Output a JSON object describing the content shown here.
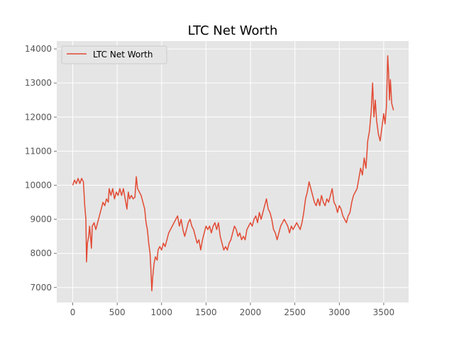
{
  "chart_data": {
    "type": "line",
    "title": "LTC Net Worth",
    "xlabel": "",
    "ylabel": "",
    "xlim": [
      -180,
      3780
    ],
    "ylim": [
      6560,
      14230
    ],
    "x_ticks": [
      0,
      500,
      1000,
      1500,
      2000,
      2500,
      3000,
      3500
    ],
    "y_ticks": [
      7000,
      8000,
      9000,
      10000,
      11000,
      12000,
      13000,
      14000
    ],
    "grid": true,
    "legend": {
      "placement": "upper-left",
      "entries": [
        "LTC Net Worth"
      ]
    },
    "colors": {
      "series": "#E24A33",
      "plot_bg": "#E5E5E5",
      "grid": "#FFFFFF",
      "tick_text": "#555555"
    },
    "series": [
      {
        "name": "LTC Net Worth",
        "points": [
          [
            0,
            10000
          ],
          [
            20,
            10150
          ],
          [
            40,
            10050
          ],
          [
            60,
            10200
          ],
          [
            80,
            10050
          ],
          [
            100,
            10200
          ],
          [
            120,
            10100
          ],
          [
            135,
            9400
          ],
          [
            148,
            9000
          ],
          [
            155,
            7750
          ],
          [
            165,
            8300
          ],
          [
            180,
            8500
          ],
          [
            190,
            8800
          ],
          [
            200,
            8500
          ],
          [
            210,
            8150
          ],
          [
            220,
            8800
          ],
          [
            240,
            8900
          ],
          [
            260,
            8700
          ],
          [
            280,
            8900
          ],
          [
            300,
            9100
          ],
          [
            320,
            9300
          ],
          [
            340,
            9500
          ],
          [
            360,
            9400
          ],
          [
            380,
            9600
          ],
          [
            400,
            9500
          ],
          [
            410,
            9900
          ],
          [
            430,
            9700
          ],
          [
            450,
            9900
          ],
          [
            470,
            9600
          ],
          [
            490,
            9800
          ],
          [
            510,
            9700
          ],
          [
            530,
            9900
          ],
          [
            550,
            9700
          ],
          [
            570,
            9900
          ],
          [
            590,
            9600
          ],
          [
            610,
            9300
          ],
          [
            625,
            9800
          ],
          [
            640,
            9600
          ],
          [
            660,
            9700
          ],
          [
            680,
            9600
          ],
          [
            700,
            9650
          ],
          [
            715,
            10250
          ],
          [
            730,
            9900
          ],
          [
            750,
            9800
          ],
          [
            770,
            9700
          ],
          [
            790,
            9500
          ],
          [
            810,
            9300
          ],
          [
            825,
            8900
          ],
          [
            840,
            8700
          ],
          [
            855,
            8300
          ],
          [
            870,
            8000
          ],
          [
            880,
            7500
          ],
          [
            890,
            6900
          ],
          [
            900,
            7300
          ],
          [
            915,
            7700
          ],
          [
            930,
            7900
          ],
          [
            950,
            7800
          ],
          [
            960,
            8100
          ],
          [
            980,
            8200
          ],
          [
            1000,
            8100
          ],
          [
            1020,
            8300
          ],
          [
            1040,
            8200
          ],
          [
            1060,
            8400
          ],
          [
            1080,
            8600
          ],
          [
            1100,
            8700
          ],
          [
            1120,
            8800
          ],
          [
            1140,
            8900
          ],
          [
            1160,
            9000
          ],
          [
            1180,
            9100
          ],
          [
            1200,
            8800
          ],
          [
            1220,
            9000
          ],
          [
            1240,
            8700
          ],
          [
            1260,
            8500
          ],
          [
            1280,
            8700
          ],
          [
            1300,
            8900
          ],
          [
            1320,
            9000
          ],
          [
            1340,
            8800
          ],
          [
            1360,
            8700
          ],
          [
            1380,
            8500
          ],
          [
            1400,
            8300
          ],
          [
            1420,
            8400
          ],
          [
            1440,
            8100
          ],
          [
            1460,
            8400
          ],
          [
            1480,
            8600
          ],
          [
            1500,
            8800
          ],
          [
            1520,
            8700
          ],
          [
            1540,
            8800
          ],
          [
            1560,
            8600
          ],
          [
            1580,
            8800
          ],
          [
            1600,
            8900
          ],
          [
            1620,
            8700
          ],
          [
            1640,
            8900
          ],
          [
            1660,
            8500
          ],
          [
            1680,
            8300
          ],
          [
            1700,
            8100
          ],
          [
            1720,
            8200
          ],
          [
            1740,
            8100
          ],
          [
            1760,
            8300
          ],
          [
            1780,
            8400
          ],
          [
            1800,
            8600
          ],
          [
            1820,
            8800
          ],
          [
            1840,
            8700
          ],
          [
            1860,
            8500
          ],
          [
            1880,
            8600
          ],
          [
            1900,
            8400
          ],
          [
            1920,
            8500
          ],
          [
            1940,
            8400
          ],
          [
            1960,
            8700
          ],
          [
            1980,
            8800
          ],
          [
            2000,
            8900
          ],
          [
            2020,
            8800
          ],
          [
            2040,
            9000
          ],
          [
            2060,
            9100
          ],
          [
            2080,
            8900
          ],
          [
            2100,
            9200
          ],
          [
            2120,
            9000
          ],
          [
            2140,
            9200
          ],
          [
            2160,
            9400
          ],
          [
            2180,
            9600
          ],
          [
            2200,
            9300
          ],
          [
            2220,
            9200
          ],
          [
            2240,
            9000
          ],
          [
            2260,
            8700
          ],
          [
            2280,
            8600
          ],
          [
            2300,
            8400
          ],
          [
            2320,
            8600
          ],
          [
            2340,
            8800
          ],
          [
            2360,
            8900
          ],
          [
            2380,
            9000
          ],
          [
            2400,
            8900
          ],
          [
            2420,
            8800
          ],
          [
            2440,
            8600
          ],
          [
            2460,
            8800
          ],
          [
            2480,
            8700
          ],
          [
            2500,
            8800
          ],
          [
            2520,
            8900
          ],
          [
            2540,
            8800
          ],
          [
            2560,
            8700
          ],
          [
            2580,
            8900
          ],
          [
            2600,
            9200
          ],
          [
            2620,
            9600
          ],
          [
            2640,
            9800
          ],
          [
            2660,
            10100
          ],
          [
            2680,
            9900
          ],
          [
            2700,
            9700
          ],
          [
            2720,
            9500
          ],
          [
            2740,
            9400
          ],
          [
            2760,
            9600
          ],
          [
            2780,
            9400
          ],
          [
            2800,
            9700
          ],
          [
            2820,
            9500
          ],
          [
            2840,
            9400
          ],
          [
            2860,
            9600
          ],
          [
            2880,
            9500
          ],
          [
            2900,
            9700
          ],
          [
            2920,
            9900
          ],
          [
            2940,
            9500
          ],
          [
            2960,
            9400
          ],
          [
            2980,
            9200
          ],
          [
            3000,
            9400
          ],
          [
            3020,
            9300
          ],
          [
            3040,
            9100
          ],
          [
            3060,
            9000
          ],
          [
            3080,
            8900
          ],
          [
            3100,
            9100
          ],
          [
            3120,
            9200
          ],
          [
            3140,
            9500
          ],
          [
            3160,
            9700
          ],
          [
            3180,
            9800
          ],
          [
            3200,
            9900
          ],
          [
            3220,
            10200
          ],
          [
            3240,
            10500
          ],
          [
            3260,
            10300
          ],
          [
            3280,
            10800
          ],
          [
            3300,
            10500
          ],
          [
            3320,
            11300
          ],
          [
            3340,
            11600
          ],
          [
            3360,
            12200
          ],
          [
            3375,
            13000
          ],
          [
            3390,
            12000
          ],
          [
            3405,
            12500
          ],
          [
            3420,
            11900
          ],
          [
            3440,
            11500
          ],
          [
            3460,
            11300
          ],
          [
            3480,
            11700
          ],
          [
            3500,
            12100
          ],
          [
            3515,
            11800
          ],
          [
            3530,
            12300
          ],
          [
            3545,
            13800
          ],
          [
            3555,
            13300
          ],
          [
            3565,
            12500
          ],
          [
            3575,
            13100
          ],
          [
            3590,
            12400
          ],
          [
            3600,
            12300
          ],
          [
            3610,
            12200
          ]
        ]
      }
    ]
  }
}
